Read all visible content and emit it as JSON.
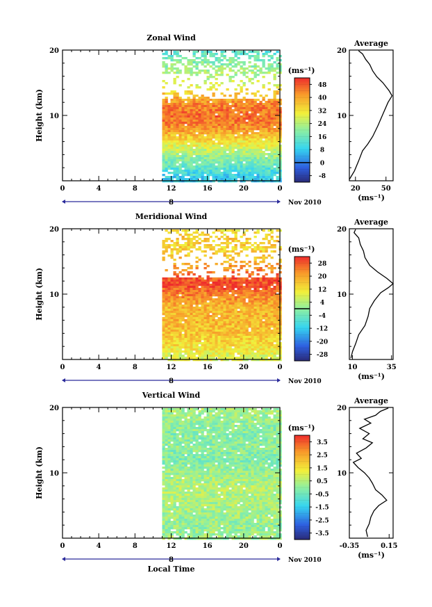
{
  "chart_data": [
    {
      "type": "heatmap",
      "title": "Zonal Wind",
      "ylabel": "Height (km)",
      "y_ticks": [
        10,
        20
      ],
      "ylim": [
        0,
        20
      ],
      "x_ticks": [
        "0",
        "4",
        "8",
        "12",
        "16",
        "20",
        "0"
      ],
      "date_marker": "8",
      "date_label": "Nov 2010",
      "data_start_hour": 11,
      "colorbar": {
        "unit": "(ms⁻¹)",
        "ticks": [
          "48",
          "40",
          "32",
          "24",
          "16",
          "8",
          "0",
          "-8"
        ],
        "range": [
          -12,
          52
        ],
        "zero_line": 0
      },
      "profile_by_height": [
        {
          "height": 0.5,
          "value": 8
        },
        {
          "height": 2,
          "value": 14
        },
        {
          "height": 4,
          "value": 22
        },
        {
          "height": 6,
          "value": 32
        },
        {
          "height": 8,
          "value": 42
        },
        {
          "height": 10,
          "value": 46
        },
        {
          "height": 11.5,
          "value": 44
        },
        {
          "height": 13,
          "value": 38
        },
        {
          "height": 15,
          "value": 26
        },
        {
          "height": 17,
          "value": 22
        },
        {
          "height": 18.5,
          "value": 18
        },
        {
          "height": 19.5,
          "value": 14
        }
      ],
      "average": {
        "title": "Average",
        "xlabel": "(ms⁻¹)",
        "x_ticks": [
          "20",
          "50"
        ],
        "xlim": [
          14,
          57
        ],
        "y_ticks": [
          10,
          20
        ],
        "points": [
          [
            14,
            0.2
          ],
          [
            19,
            1.5
          ],
          [
            23,
            3
          ],
          [
            27,
            4.6
          ],
          [
            32,
            5.6
          ],
          [
            37,
            6.8
          ],
          [
            42,
            8.4
          ],
          [
            47,
            10.2
          ],
          [
            52,
            12
          ],
          [
            56,
            13
          ],
          [
            53,
            13.8
          ],
          [
            47,
            15
          ],
          [
            41,
            15.9
          ],
          [
            37,
            16.8
          ],
          [
            34,
            17.8
          ],
          [
            30,
            18.6
          ],
          [
            27,
            19.4
          ],
          [
            23,
            19.9
          ]
        ]
      }
    },
    {
      "type": "heatmap",
      "title": "Meridional Wind",
      "ylabel": "Height (km)",
      "y_ticks": [
        10,
        20
      ],
      "ylim": [
        0,
        20
      ],
      "x_ticks": [
        "0",
        "4",
        "8",
        "12",
        "16",
        "20",
        "0"
      ],
      "date_marker": "8",
      "date_label": "Nov 2010",
      "data_start_hour": 11,
      "colorbar": {
        "unit": "(ms⁻¹)",
        "ticks": [
          "28",
          "20",
          "12",
          "4",
          "-4",
          "-12",
          "-20",
          "-28"
        ],
        "range": [
          -32,
          32
        ],
        "zero_line": 0
      },
      "profile_by_height": [
        {
          "height": 0.5,
          "value": 8
        },
        {
          "height": 2,
          "value": 12
        },
        {
          "height": 4,
          "value": 16
        },
        {
          "height": 6,
          "value": 18
        },
        {
          "height": 8,
          "value": 18
        },
        {
          "height": 10,
          "value": 24
        },
        {
          "height": 11.5,
          "value": 30
        },
        {
          "height": 13,
          "value": 26
        },
        {
          "height": 15,
          "value": 18
        },
        {
          "height": 17,
          "value": 14
        },
        {
          "height": 18.5,
          "value": 16
        },
        {
          "height": 19.5,
          "value": 12
        }
      ],
      "average": {
        "title": "Average",
        "xlabel": "(ms⁻¹)",
        "x_ticks": [
          "10",
          "35"
        ],
        "xlim": [
          8,
          36
        ],
        "y_ticks": [
          10,
          20
        ],
        "points": [
          [
            9,
            0.2
          ],
          [
            10,
            1.2
          ],
          [
            12,
            2.4
          ],
          [
            14,
            3.8
          ],
          [
            18,
            5.2
          ],
          [
            20,
            6.6
          ],
          [
            21,
            7.8
          ],
          [
            24,
            9
          ],
          [
            28,
            10.2
          ],
          [
            33,
            11
          ],
          [
            36,
            11.6
          ],
          [
            32,
            12.4
          ],
          [
            26,
            13.4
          ],
          [
            21,
            14.4
          ],
          [
            18,
            15.6
          ],
          [
            17,
            16.6
          ],
          [
            15,
            17.6
          ],
          [
            14,
            18.6
          ],
          [
            11,
            19.4
          ],
          [
            12,
            19.9
          ]
        ]
      }
    },
    {
      "type": "heatmap",
      "title": "Vertical Wind",
      "ylabel": "Height (km)",
      "xlabel": "Local Time",
      "y_ticks": [
        10,
        20
      ],
      "ylim": [
        0,
        20
      ],
      "x_ticks": [
        "0",
        "4",
        "8",
        "12",
        "16",
        "20",
        "0"
      ],
      "date_marker": "8",
      "date_label": "Nov 2010",
      "data_start_hour": 11,
      "colorbar": {
        "unit": "(ms⁻¹)",
        "ticks": [
          "3.5",
          "2.5",
          "1.5",
          "0.5",
          "-0.5",
          "-1.5",
          "-2.5",
          "-3.5"
        ],
        "range": [
          -4,
          4
        ],
        "zero_line": null
      },
      "profile_by_height": [
        {
          "height": 0.5,
          "value": 0.2
        },
        {
          "height": 2,
          "value": 0.1
        },
        {
          "height": 4,
          "value": 0.3
        },
        {
          "height": 6,
          "value": 0.4
        },
        {
          "height": 8,
          "value": 0.5
        },
        {
          "height": 10,
          "value": 0.2
        },
        {
          "height": 12,
          "value": -0.2
        },
        {
          "height": 14,
          "value": 0.0
        },
        {
          "height": 16,
          "value": -0.1
        },
        {
          "height": 18,
          "value": 0.1
        },
        {
          "height": 19.5,
          "value": 0.3
        }
      ],
      "average": {
        "title": "Average",
        "xlabel": "(ms⁻¹)",
        "x_ticks": [
          "-0.35",
          "0.15"
        ],
        "xlim": [
          -0.35,
          0.2
        ],
        "y_ticks": [
          10,
          20
        ],
        "points": [
          [
            -0.12,
            0.2
          ],
          [
            -0.14,
            1.2
          ],
          [
            -0.1,
            2.2
          ],
          [
            -0.08,
            3.2
          ],
          [
            -0.04,
            4.2
          ],
          [
            0.02,
            5.0
          ],
          [
            0.12,
            5.8
          ],
          [
            0.06,
            6.6
          ],
          [
            -0.02,
            7.4
          ],
          [
            -0.06,
            8.4
          ],
          [
            -0.1,
            9.2
          ],
          [
            -0.16,
            10.0
          ],
          [
            -0.24,
            10.8
          ],
          [
            -0.3,
            11.6
          ],
          [
            -0.2,
            12.2
          ],
          [
            -0.26,
            13.0
          ],
          [
            -0.14,
            13.8
          ],
          [
            -0.06,
            14.6
          ],
          [
            -0.18,
            15.2
          ],
          [
            -0.1,
            16.0
          ],
          [
            -0.22,
            16.8
          ],
          [
            -0.08,
            17.6
          ],
          [
            -0.16,
            18.2
          ],
          [
            -0.02,
            18.8
          ],
          [
            0.04,
            19.4
          ],
          [
            0.14,
            19.9
          ]
        ]
      }
    }
  ]
}
